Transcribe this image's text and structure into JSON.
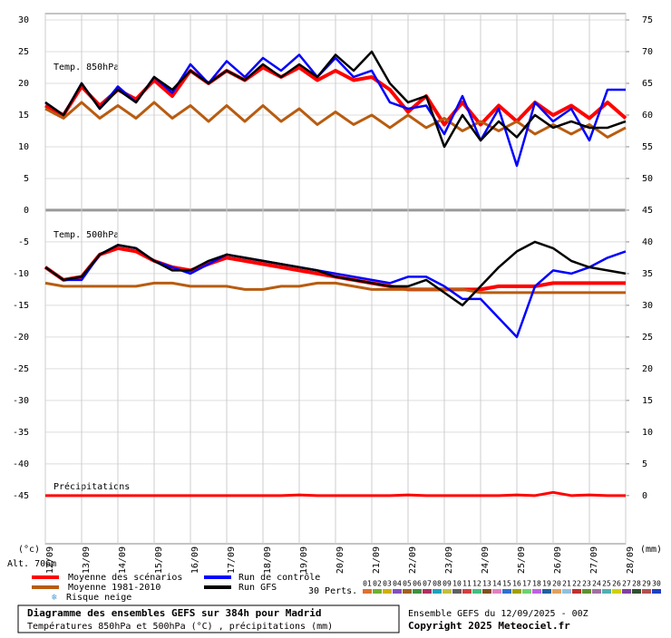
{
  "chart_data": {
    "type": "line",
    "title": "Diagramme des ensembles GEFS sur 384h pour Madrid",
    "subtitle": "Températures 850hPa et 500hPa (°C) , précipitations (mm)",
    "run_info": "Ensemble GEFS du 12/09/2025 - 00Z",
    "copyright": "Copyright 2025 Meteociel.fr",
    "y_label": "(°c)",
    "y2_label": "(mm)",
    "altitude": "Alt. 706m",
    "panel_labels": [
      "Temp. 850hPa",
      "Temp. 500hPa",
      "Précipitations"
    ],
    "snow_label": "Risque neige",
    "perts_label": "30 Perts.",
    "perts": [
      "01",
      "02",
      "03",
      "04",
      "05",
      "06",
      "07",
      "08",
      "09",
      "10",
      "11",
      "12",
      "13",
      "14",
      "15",
      "16",
      "17",
      "18",
      "19",
      "20",
      "21",
      "22",
      "23",
      "24",
      "25",
      "26",
      "27",
      "28",
      "29",
      "30"
    ],
    "pert_colors": [
      "#e07030",
      "#70b030",
      "#d0b000",
      "#8050c0",
      "#a06020",
      "#409040",
      "#b03060",
      "#20a0c0",
      "#c0c040",
      "#606060",
      "#d04040",
      "#40c080",
      "#805020",
      "#e080c0",
      "#3070d0",
      "#a0a000",
      "#70d070",
      "#c060e0",
      "#2060a0",
      "#e0a060",
      "#90c0e0",
      "#c03030",
      "#609030",
      "#a070a0",
      "#50b0b0",
      "#d0d000",
      "#8040a0",
      "#305030",
      "#b05050",
      "#2040c0"
    ],
    "categories": [
      "12/09",
      null,
      "13/09",
      null,
      "14/09",
      null,
      "15/09",
      null,
      "16/09",
      null,
      "17/09",
      null,
      "18/09",
      null,
      "19/09",
      null,
      "20/09",
      null,
      "21/09",
      null,
      "22/09",
      null,
      "23/09",
      null,
      "24/09",
      null,
      "25/09",
      null,
      "26/09",
      null,
      "27/09",
      null,
      "28/09"
    ],
    "ylim": [
      -52.6,
      31
    ],
    "yticks": [
      30,
      25,
      20,
      15,
      10,
      5,
      0,
      -5,
      -10,
      -15,
      -20,
      -25,
      -30,
      -35,
      -40,
      -45
    ],
    "y2lim": [
      -7.6,
      76
    ],
    "y2ticks": [
      75,
      70,
      65,
      60,
      55,
      50,
      45,
      40,
      35,
      30,
      25,
      20,
      15,
      10,
      5,
      0
    ],
    "grid": true,
    "series": [
      {
        "name": "Moyenne des scénarios",
        "color": "#ff0000",
        "values": [
          16.5,
          15,
          19.5,
          16.5,
          19,
          17.5,
          20.5,
          18,
          22,
          20,
          22,
          20.5,
          22.5,
          21,
          22.5,
          20.5,
          22,
          20.5,
          21,
          19,
          15.5,
          18,
          13.5,
          17,
          13.5,
          16.5,
          14,
          17,
          15,
          16.5,
          14.5,
          17,
          14.5
        ]
      },
      {
        "name": "Moyenne 1981-2010",
        "color": "#b85c10",
        "values": [
          16,
          14.5,
          17,
          14.5,
          16.5,
          14.5,
          17,
          14.5,
          16.5,
          14,
          16.5,
          14,
          16.5,
          14,
          16,
          13.5,
          15.5,
          13.5,
          15,
          13,
          15,
          13,
          14.5,
          12.5,
          14,
          12.5,
          14,
          12,
          13.5,
          12,
          13.5,
          11.5,
          13
        ]
      },
      {
        "name": "Run de contrôle",
        "color": "#0000ff",
        "values": [
          17,
          15,
          20,
          16,
          19.5,
          17,
          21,
          18.5,
          23,
          20,
          23.5,
          21,
          24,
          22,
          24.5,
          21,
          24,
          21,
          22,
          17,
          16,
          16.5,
          12,
          18,
          11,
          16,
          7,
          17,
          14,
          16,
          11,
          19,
          19
        ]
      },
      {
        "name": "Run GFS",
        "color": "#000000",
        "values": [
          17,
          15,
          20,
          16,
          19,
          17,
          21,
          19,
          22,
          20,
          22,
          20.5,
          23,
          21,
          23,
          21,
          24.5,
          22,
          25,
          20,
          17,
          18,
          10,
          15,
          11,
          14,
          11.5,
          15,
          13,
          14,
          13,
          13,
          14
        ]
      },
      {
        "name": "Moyenne des scénarios",
        "color": "#ff0000",
        "values": [
          -9,
          -11,
          -10.5,
          -7,
          -6,
          -6.5,
          -8,
          -9,
          -9.5,
          -8.5,
          -7.5,
          -8,
          -8.5,
          -9,
          -9.5,
          -10,
          -10.5,
          -11,
          -11.5,
          -12,
          -12.5,
          -12.5,
          -12.5,
          -12.5,
          -12.5,
          -12,
          -12,
          -12,
          -11.5,
          -11.5,
          -11.5,
          -11.5,
          -11.5
        ]
      },
      {
        "name": "Moyenne 1981-2010",
        "color": "#b85c10",
        "values": [
          -11.5,
          -12,
          -12,
          -12,
          -12,
          -12,
          -11.5,
          -11.5,
          -12,
          -12,
          -12,
          -12.5,
          -12.5,
          -12,
          -12,
          -11.5,
          -11.5,
          -12,
          -12.5,
          -12.5,
          -12.5,
          -12.5,
          -12.5,
          -12.5,
          -13,
          -13,
          -13,
          -13,
          -13,
          -13,
          -13,
          -13,
          -13
        ]
      },
      {
        "name": "Run de contrôle",
        "color": "#0000ff",
        "values": [
          -9,
          -11,
          -11,
          -7,
          -5.5,
          -6,
          -8,
          -9,
          -10,
          -8.5,
          -7,
          -7.5,
          -8,
          -8.5,
          -9,
          -9.5,
          -10,
          -10.5,
          -11,
          -11.5,
          -10.5,
          -10.5,
          -12,
          -14,
          -14,
          -17,
          -20,
          -12,
          -9.5,
          -10,
          -9,
          -7.5,
          -6.5
        ]
      },
      {
        "name": "Run GFS",
        "color": "#000000",
        "values": [
          -9,
          -11,
          -10.5,
          -7,
          -5.5,
          -6,
          -8,
          -9.5,
          -9.5,
          -8,
          -7,
          -7.5,
          -8,
          -8.5,
          -9,
          -9.5,
          -10.5,
          -11,
          -11.5,
          -12,
          -12,
          -11,
          -13,
          -15,
          -12,
          -9,
          -6.5,
          -5,
          -6,
          -8,
          -9,
          -9.5,
          -10
        ]
      },
      {
        "name": "Moyenne des scénarios",
        "color": "#ff0000",
        "axis": "y2",
        "values": [
          0,
          0,
          0,
          0,
          0,
          0,
          0,
          0,
          0,
          0,
          0,
          0,
          0,
          0,
          0.1,
          0,
          0,
          0,
          0,
          0,
          0.1,
          0,
          0,
          0,
          0,
          0,
          0.1,
          0,
          0.5,
          0,
          0.1,
          0,
          0
        ]
      }
    ]
  }
}
